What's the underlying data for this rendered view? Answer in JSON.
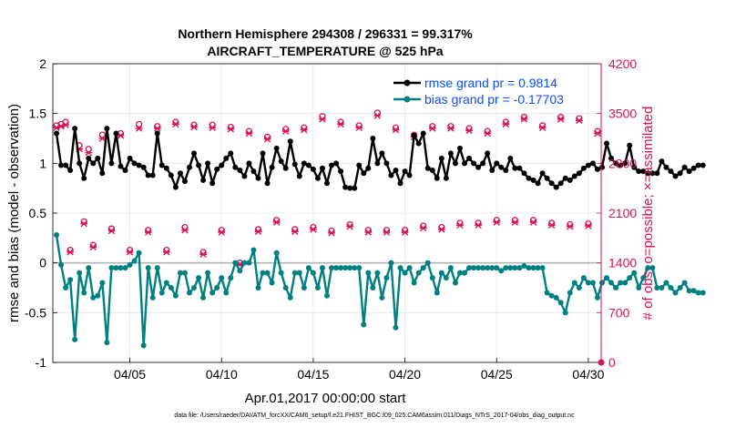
{
  "figure": {
    "title_line1": "Northern Hemisphere 294308 / 296331 = 99.317%",
    "title_line2": "AIRCRAFT_TEMPERATURE @ 525 hPa",
    "footer_note": "data file: /Users/raeder/DAI/ATM_forcXX/CAM6_setup/f.e21.FHIST_BGC.f09_025.CAM6assim.011/Diags_NTrS_2017-04/obs_diag_output.nc"
  },
  "colors": {
    "rmse": "#000000",
    "bias": "#008080",
    "obs": "#d6135a",
    "zero_line": "#b4b4b4",
    "legend_text": "#0a4ef5",
    "grid": "#e6e6e6"
  },
  "chart_data": {
    "type": "line",
    "xlabel": "Apr.01,2017 00:00:00 start",
    "ylabel_left": "rmse and bias (model - observation)",
    "ylabel_right": "# of obs: o=possible; ×=assimilated",
    "x_range": [
      0.8,
      30.7
    ],
    "x_ticks": [
      5,
      10,
      15,
      20,
      25,
      30
    ],
    "x_tick_labels": [
      "04/05",
      "04/10",
      "04/15",
      "04/20",
      "04/25",
      "04/30"
    ],
    "ylim_left": [
      -1,
      2
    ],
    "y_ticks_left": [
      -1,
      -0.5,
      0,
      0.5,
      1,
      1.5,
      2
    ],
    "y_tick_labels_left": [
      "-1",
      "-0.5",
      "0",
      "0.5",
      "1",
      "1.5",
      "2"
    ],
    "ylim_right": [
      0,
      4200
    ],
    "y_ticks_right": [
      0,
      700,
      1400,
      2100,
      2800,
      3500,
      4200
    ],
    "y_tick_labels_right": [
      "0",
      "700",
      "1400",
      "2100",
      "2800",
      "3500",
      "4200"
    ],
    "legend": [
      "rmse grand pr = 0.9814",
      "bias grand pr = -0.17703"
    ],
    "series": [
      {
        "name": "rmse",
        "start": 1.0,
        "step": 0.25,
        "values": [
          1.3,
          0.98,
          0.98,
          0.93,
          1.35,
          1.0,
          0.85,
          1.05,
          1.0,
          1.05,
          0.9,
          1.35,
          1.0,
          1.3,
          0.97,
          0.93,
          1.05,
          1.0,
          0.98,
          0.96,
          0.88,
          0.88,
          1.3,
          0.98,
          0.95,
          0.88,
          0.76,
          0.9,
          0.82,
          0.96,
          1.1,
          0.98,
          0.83,
          1.0,
          0.8,
          0.94,
          0.98,
          1.05,
          1.1,
          0.96,
          0.93,
          0.87,
          1.0,
          0.92,
          0.85,
          1.1,
          0.8,
          0.96,
          1.15,
          1.02,
          0.95,
          1.22,
          0.99,
          0.87,
          1.0,
          0.98,
          0.94,
          0.85,
          0.95,
          0.8,
          0.98,
          1.0,
          0.92,
          0.76,
          0.75,
          0.75,
          0.98,
          0.9,
          0.95,
          1.25,
          1.0,
          1.1,
          1.0,
          0.88,
          0.93,
          0.8,
          0.92,
          0.88,
          1.28,
          1.2,
          1.3,
          0.95,
          0.93,
          0.85,
          1.05,
          0.85,
          1.1,
          1.0,
          1.15,
          1.0,
          1.05,
          1.0,
          0.96,
          1.0,
          1.1,
          0.93,
          1.0,
          0.96,
          0.93,
          1.05,
          0.95,
          0.95,
          0.9,
          0.85,
          0.83,
          0.8,
          0.9,
          0.85,
          0.8,
          0.76,
          0.8,
          0.85,
          0.83,
          0.87,
          0.9,
          0.95,
          0.98,
          1.0,
          0.94,
          0.96,
          1.2,
          1.05,
          1.0,
          0.98,
          1.0,
          1.18,
          0.96,
          0.92,
          0.92,
          0.9,
          0.9,
          0.9,
          1.02,
          0.96,
          0.92,
          0.87,
          0.9,
          0.96,
          0.92,
          0.95,
          0.98,
          0.98
        ]
      },
      {
        "name": "bias",
        "start": 1.0,
        "step": 0.25,
        "values": [
          0.28,
          -0.02,
          -0.25,
          -0.17,
          -0.77,
          -0.1,
          -0.3,
          -0.05,
          -0.35,
          -0.33,
          -0.2,
          -0.8,
          -0.05,
          -0.05,
          -0.05,
          -0.05,
          -0.02,
          0.02,
          0.1,
          -0.83,
          -0.05,
          -0.35,
          -0.05,
          -0.3,
          -0.2,
          -0.25,
          -0.33,
          -0.1,
          -0.1,
          -0.3,
          -0.25,
          -0.15,
          -0.35,
          -0.1,
          -0.3,
          -0.25,
          -0.15,
          -0.3,
          -0.15,
          0.0,
          -0.08,
          0.0,
          0.0,
          0.13,
          -0.25,
          -0.1,
          -0.1,
          -0.2,
          0.1,
          -0.1,
          -0.25,
          -0.35,
          -0.1,
          -0.1,
          -0.25,
          -0.05,
          -0.1,
          -0.25,
          -0.05,
          -0.33,
          -0.05,
          -0.05,
          -0.05,
          -0.05,
          -0.05,
          -0.05,
          -0.05,
          -0.62,
          -0.1,
          -0.25,
          -0.1,
          -0.35,
          -0.15,
          0.0,
          -0.65,
          -0.05,
          -0.1,
          -0.05,
          -0.2,
          -0.1,
          -0.05,
          0.0,
          -0.15,
          -0.3,
          -0.1,
          -0.15,
          -0.05,
          -0.2,
          -0.1,
          -0.1,
          -0.05,
          -0.05,
          -0.05,
          -0.05,
          -0.05,
          -0.05,
          -0.05,
          -0.08,
          -0.05,
          -0.05,
          -0.05,
          -0.05,
          -0.03,
          -0.05,
          -0.05,
          -0.05,
          -0.05,
          -0.3,
          -0.33,
          -0.35,
          -0.4,
          -0.5,
          -0.3,
          -0.2,
          -0.25,
          -0.15,
          -0.2,
          -0.2,
          -0.35,
          -0.2,
          -0.15,
          -0.2,
          -0.25,
          -0.2,
          -0.2,
          -0.15,
          -0.1,
          -0.25,
          -0.15,
          -0.05,
          -0.05,
          -0.25,
          -0.25,
          -0.2,
          -0.25,
          -0.3,
          -0.25,
          -0.2,
          -0.28,
          -0.28,
          -0.3,
          -0.3
        ]
      },
      {
        "name": "obs_possible",
        "axis": "right",
        "x": [
          1.0,
          1.25,
          1.5,
          1.75,
          2.25,
          2.5,
          2.75,
          3.0,
          3.5,
          4.0,
          4.5,
          5.0,
          5.5,
          6.0,
          6.5,
          7.0,
          7.5,
          8.0,
          8.5,
          9.0,
          9.5,
          10.0,
          10.5,
          11.0,
          11.5,
          12.0,
          12.5,
          13.0,
          13.5,
          14.0,
          14.5,
          15.0,
          15.5,
          16.0,
          16.5,
          17.0,
          17.5,
          18.0,
          18.5,
          19.0,
          19.5,
          20.0,
          20.5,
          21.0,
          21.5,
          22.0,
          22.5,
          23.0,
          23.5,
          24.0,
          24.5,
          25.0,
          25.5,
          26.0,
          26.5,
          27.0,
          27.5,
          28.0,
          28.5,
          29.0,
          29.5,
          30.0,
          30.5
        ],
        "values": [
          3330,
          3350,
          3380,
          1580,
          3050,
          1980,
          3000,
          1650,
          3200,
          1880,
          3220,
          1580,
          3350,
          1860,
          3320,
          1580,
          3380,
          1900,
          3340,
          1550,
          3340,
          1860,
          3310,
          1400,
          3250,
          1870,
          3170,
          2000,
          3280,
          1870,
          3300,
          1900,
          3460,
          1850,
          3380,
          1940,
          3330,
          1860,
          3510,
          1860,
          3300,
          1860,
          3200,
          1920,
          3320,
          1900,
          3320,
          1960,
          3290,
          1960,
          3250,
          2000,
          3380,
          2000,
          3450,
          2000,
          3330,
          1960,
          3450,
          1940,
          3430,
          1950,
          3250
        ]
      },
      {
        "name": "obs_assimilated",
        "axis": "right",
        "x": [
          1.0,
          1.25,
          1.5,
          1.75,
          2.25,
          2.5,
          2.75,
          3.0,
          3.5,
          4.0,
          4.5,
          5.0,
          5.5,
          6.0,
          6.5,
          7.0,
          7.5,
          8.0,
          8.5,
          9.0,
          9.5,
          10.0,
          10.5,
          11.0,
          11.5,
          12.0,
          12.5,
          13.0,
          13.5,
          14.0,
          14.5,
          15.0,
          15.5,
          16.0,
          16.5,
          17.0,
          17.5,
          18.0,
          18.5,
          19.0,
          19.5,
          20.0,
          20.5,
          21.0,
          21.5,
          22.0,
          22.5,
          23.0,
          23.5,
          24.0,
          24.5,
          25.0,
          25.5,
          26.0,
          26.5,
          27.0,
          27.5,
          28.0,
          28.5,
          29.0,
          29.5,
          30.0,
          30.5
        ],
        "values": [
          3300,
          3320,
          3340,
          1550,
          3000,
          1950,
          2950,
          1620,
          3150,
          1850,
          3190,
          1550,
          3290,
          1830,
          3290,
          1550,
          3350,
          1860,
          3310,
          1520,
          3300,
          1830,
          3280,
          1380,
          3220,
          1840,
          3140,
          1970,
          3250,
          1840,
          3270,
          1870,
          3420,
          1820,
          3350,
          1910,
          3300,
          1830,
          3470,
          1830,
          3270,
          1830,
          3170,
          1890,
          3290,
          1870,
          3290,
          1930,
          3260,
          1930,
          3220,
          1970,
          3350,
          1970,
          3420,
          1970,
          3300,
          1930,
          3420,
          1910,
          3400,
          1920,
          3220
        ]
      }
    ]
  }
}
